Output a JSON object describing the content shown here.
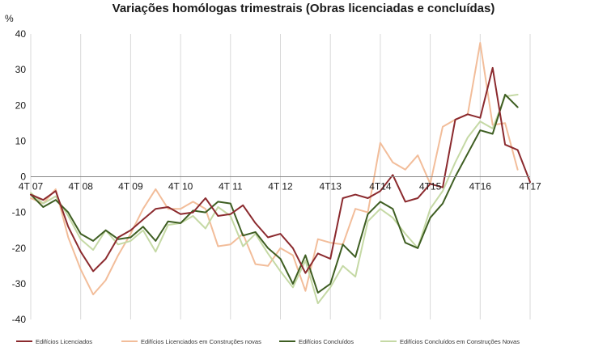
{
  "chart_data": {
    "type": "line",
    "title": "Variações homólogas trimestrais (Obras licenciadas e concluídas)",
    "ylabel": "%",
    "xlabel": "",
    "ylim": [
      -40,
      40
    ],
    "yticks": [
      -40,
      -30,
      -20,
      -10,
      0,
      10,
      20,
      30,
      40
    ],
    "grid": "vertical",
    "legend_position": "bottom",
    "x_tick_labels": [
      {
        "label": "4T 07",
        "index": 0
      },
      {
        "label": "4T 08",
        "index": 4
      },
      {
        "label": "4T 09",
        "index": 8
      },
      {
        "label": "4T 10",
        "index": 12
      },
      {
        "label": "4T 11",
        "index": 16
      },
      {
        "label": "4T 12",
        "index": 20
      },
      {
        "label": "4T13",
        "index": 24
      },
      {
        "label": "4T14",
        "index": 28
      },
      {
        "label": "4T15",
        "index": 32
      },
      {
        "label": "4T16",
        "index": 36
      },
      {
        "label": "4T17",
        "index": 40
      }
    ],
    "series": [
      {
        "name": "Edifícios Licenciados",
        "color": "#8b2a2e",
        "values": [
          -5,
          -6.5,
          -4,
          -14,
          -21,
          -26.5,
          -23,
          -17,
          -15,
          -12,
          -9,
          -8.5,
          -10.5,
          -10,
          -6,
          -11,
          -10.5,
          -8,
          -13,
          -17,
          -16,
          -20,
          -27,
          -21.5,
          -23,
          -6,
          -5,
          -6,
          -4,
          0.5,
          -7,
          -6,
          -2,
          -3,
          16,
          17.5,
          16.5,
          30.5,
          9,
          7.5,
          -1.5
        ]
      },
      {
        "name": "Edifícios Licenciados em Construções novas",
        "color": "#f2bd9a",
        "values": [
          -6,
          -7.5,
          -3.5,
          -17,
          -26,
          -33,
          -29,
          -22,
          -16,
          -9,
          -3.5,
          -9,
          -9,
          -7,
          -9,
          -19.5,
          -19,
          -16,
          -24.5,
          -25,
          -20,
          -22,
          -32,
          -17.5,
          -18.5,
          -19,
          -9,
          -10,
          9.5,
          4,
          2,
          6,
          -2,
          14,
          16,
          17.5,
          37.5,
          14.5,
          15,
          2
        ]
      },
      {
        "name": "Edifícios Concluídos",
        "color": "#3e5e22",
        "values": [
          -5,
          -8.5,
          -6.5,
          -10,
          -16,
          -18,
          -15,
          -17.5,
          -17,
          -14,
          -18,
          -12.5,
          -13,
          -9.5,
          -10,
          -7,
          -7.5,
          -16.5,
          -15.5,
          -20,
          -23,
          -30,
          -22,
          -32.5,
          -30,
          -19,
          -22.5,
          -10.5,
          -7,
          -9,
          -18.5,
          -20,
          -11.5,
          -7.5,
          0,
          6.5,
          13,
          12,
          23,
          19.5
        ]
      },
      {
        "name": "Edifícios Concluídos em Construções Novas",
        "color": "#c5d9a5",
        "values": [
          -4.5,
          -7.5,
          -5.5,
          -11,
          -17.5,
          -20.5,
          -15,
          -19,
          -18,
          -15,
          -21,
          -13.5,
          -13,
          -11,
          -14.5,
          -8.5,
          -11,
          -19.5,
          -16,
          -21.5,
          -26.5,
          -31,
          -23.5,
          -35.5,
          -31,
          -25,
          -28,
          -12.5,
          -9,
          -11.5,
          -16,
          -20,
          -9,
          -4,
          4,
          11,
          15.5,
          13.5,
          22.5,
          23
        ]
      }
    ]
  }
}
